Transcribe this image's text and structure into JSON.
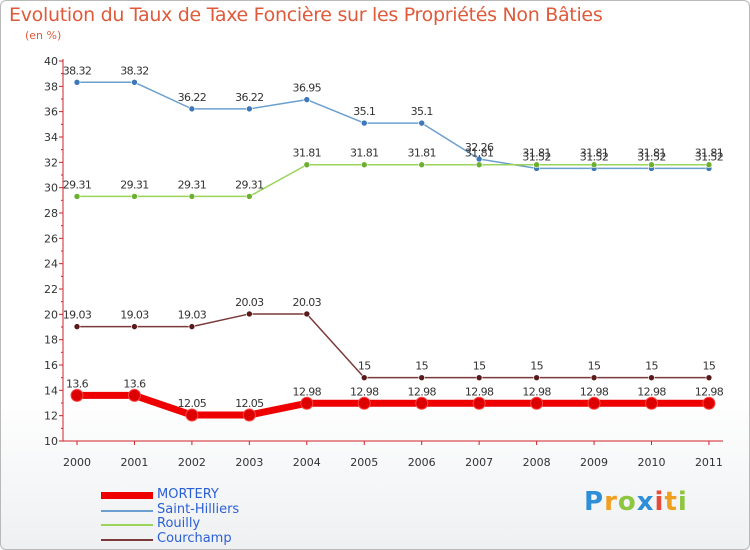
{
  "title": "Evolution du Taux de Taxe Foncière sur les Propriétés Non Bâties",
  "unit_label": "(en %)",
  "logo": {
    "letters": [
      "P",
      "r",
      "o",
      "x",
      "i",
      "t",
      "i"
    ],
    "colors": [
      "#2e8fd8",
      "#f0a020",
      "#8fc63f",
      "#2e8fd8",
      "#e84a3a",
      "#f0a020",
      "#8fc63f"
    ]
  },
  "chart_data": {
    "type": "line",
    "title": "Evolution du Taux de Taxe Foncière sur les Propriétés Non Bâties",
    "ylabel": "(en %)",
    "xlabel": "",
    "x": [
      "2000",
      "2001",
      "2002",
      "2003",
      "2004",
      "2005",
      "2006",
      "2007",
      "2008",
      "2009",
      "2010",
      "2011"
    ],
    "ylim": [
      10,
      40
    ],
    "yticks": [
      10,
      12,
      14,
      16,
      18,
      20,
      22,
      24,
      26,
      28,
      30,
      32,
      34,
      36,
      38,
      40
    ],
    "grid": false,
    "legend_position": "bottom-left",
    "series": [
      {
        "name": "Saint-Hilliers",
        "color": "#6b9fd0",
        "point_color": "#3e78b8",
        "values": [
          38.32,
          38.32,
          36.22,
          36.22,
          36.95,
          35.1,
          35.1,
          32.26,
          31.52,
          31.52,
          31.52,
          31.52
        ],
        "labels": [
          "38.32",
          "38.32",
          "36.22",
          "36.22",
          "36.95",
          "35.1",
          "35.1",
          "32.26",
          "31.52",
          "31.52",
          "31.52",
          "31.52"
        ]
      },
      {
        "name": "Rouilly",
        "color": "#9ad45a",
        "point_color": "#6cb032",
        "values": [
          29.31,
          29.31,
          29.31,
          29.31,
          31.81,
          31.81,
          31.81,
          31.81,
          31.81,
          31.81,
          31.81,
          31.81
        ],
        "labels": [
          "29.31",
          "29.31",
          "29.31",
          "29.31",
          "31.81",
          "31.81",
          "31.81",
          "31.81",
          "31.81",
          "31.81",
          "31.81",
          "31.81"
        ]
      },
      {
        "name": "Courchamp",
        "color": "#7a3a3a",
        "point_color": "#5a1a1a",
        "values": [
          19.03,
          19.03,
          19.03,
          20.03,
          20.03,
          15,
          15,
          15,
          15,
          15,
          15,
          15
        ],
        "labels": [
          "19.03",
          "19.03",
          "19.03",
          "20.03",
          "20.03",
          "15",
          "15",
          "15",
          "15",
          "15",
          "15",
          "15"
        ]
      },
      {
        "name": "MORTERY",
        "color": "#ee0000",
        "point_color": "#dd0000",
        "values": [
          13.6,
          13.6,
          12.05,
          12.05,
          12.98,
          12.98,
          12.98,
          12.98,
          12.98,
          12.98,
          12.98,
          12.98
        ],
        "labels": [
          "13.6",
          "13.6",
          "12.05",
          "12.05",
          "12.98",
          "12.98",
          "12.98",
          "12.98",
          "12.98",
          "12.98",
          "12.98",
          "12.98"
        ]
      }
    ],
    "legend": [
      {
        "name": "MORTERY",
        "color": "#ee0000",
        "text_color": "#2b5fd6",
        "thick": true
      },
      {
        "name": "Saint-Hilliers",
        "color": "#6b9fd0",
        "text_color": "#2b5fd6",
        "thick": false
      },
      {
        "name": "Rouilly",
        "color": "#9ad45a",
        "text_color": "#2b5fd6",
        "thick": false
      },
      {
        "name": "Courchamp",
        "color": "#7a3a3a",
        "text_color": "#2b5fd6",
        "thick": false
      }
    ]
  }
}
